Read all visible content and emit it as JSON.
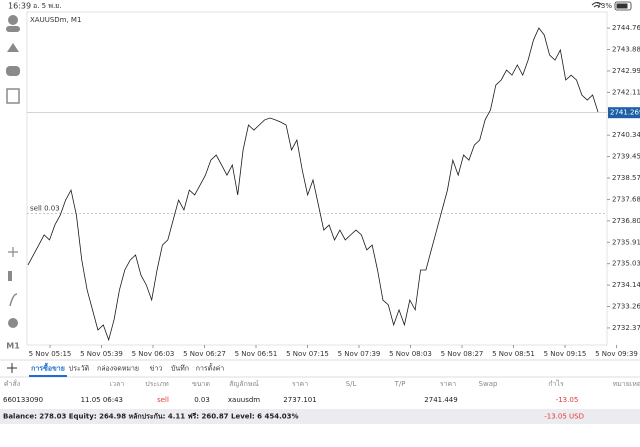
{
  "status_bar": {
    "time": "16:39",
    "date": "อ. 5 พ.ย.",
    "battery": "73%"
  },
  "toolbar": {
    "timeframe": "M1"
  },
  "chart": {
    "type": "line",
    "title": "XAUUSDm, M1",
    "color": "#1a1a1a",
    "values": [
      2734.98,
      2735.39,
      2735.8,
      2736.22,
      2736.01,
      2736.63,
      2737.04,
      2737.66,
      2738.07,
      2737.04,
      2735.18,
      2733.94,
      2733.12,
      2732.29,
      2732.5,
      2731.88,
      2732.71,
      2733.94,
      2734.77,
      2735.18,
      2735.39,
      2734.56,
      2734.15,
      2733.53,
      2734.77,
      2735.8,
      2736.01,
      2736.84,
      2737.66,
      2737.25,
      2738.07,
      2737.87,
      2738.28,
      2738.69,
      2739.31,
      2739.52,
      2739.11,
      2738.69,
      2739.11,
      2737.87,
      2739.73,
      2740.76,
      2740.55,
      2740.76,
      2740.97,
      2741.05,
      2740.97,
      2740.88,
      2740.76,
      2739.73,
      2740.14,
      2738.9,
      2737.87,
      2738.49,
      2737.46,
      2736.42,
      2736.63,
      2736.01,
      2736.42,
      2736.01,
      2736.22,
      2736.42,
      2736.22,
      2735.6,
      2735.8,
      2734.77,
      2733.53,
      2733.33,
      2732.5,
      2733.12,
      2732.5,
      2733.53,
      2733.12,
      2734.77,
      2734.77,
      2735.6,
      2736.42,
      2737.25,
      2738.07,
      2739.31,
      2738.69,
      2739.52,
      2739.31,
      2739.93,
      2740.14,
      2740.97,
      2741.38,
      2742.41,
      2742.62,
      2743.03,
      2742.82,
      2743.24,
      2742.82,
      2743.44,
      2744.27,
      2744.77,
      2744.48,
      2743.65,
      2743.44,
      2743.86,
      2742.62,
      2742.82,
      2742.62,
      2742.0,
      2741.79,
      2742.0,
      2741.3
    ],
    "ylim": [
      2731.67,
      2745.43
    ],
    "yticks": [
      2744.765,
      {
        "value": 2743.88,
        "label": "2743.880"
      },
      2742.995,
      {
        "value": 2742.11,
        "label": "2742.110"
      },
      {
        "value": 2740.34,
        "label": "2740.340"
      },
      2739.455,
      {
        "value": 2738.57,
        "label": "2738.570"
      },
      2737.685,
      {
        "value": 2736.8,
        "label": "2736.800"
      },
      2735.915,
      {
        "value": 2735.03,
        "label": "2735.030"
      },
      2734.145,
      {
        "value": 2733.26,
        "label": "2733.260"
      },
      2732.375
    ],
    "xticks": [
      "5 Nov 05:15",
      "5 Nov 05:39",
      "5 Nov 06:03",
      "5 Nov 06:27",
      "5 Nov 06:51",
      "5 Nov 07:15",
      "5 Nov 07:39",
      "5 Nov 08:03",
      "5 Nov 08:27",
      "5 Nov 08:51",
      "5 Nov 09:15",
      "5 Nov 09:39"
    ],
    "current_price": 2741.269,
    "order_line_label": "sell 0.03"
  },
  "tabs": [
    "การซื้อขาย",
    "ประวัติ",
    "กล่องจดหมาย",
    "ข่าว",
    "บันทึก",
    "การตั้งค่า"
  ],
  "table": {
    "headers": [
      "คำสั่ง",
      "เวลา",
      "ประเภท",
      "ขนาด",
      "สัญลักษณ์",
      "ราคา",
      "S/L",
      "T/P",
      "ราคา",
      "Swap",
      "กำไร",
      "หมายเหตุ"
    ],
    "rows": [
      {
        "order": "660133090",
        "time": "11.05 06:43",
        "type": "sell",
        "volume": 0.03,
        "symbol": "xauusdm",
        "open_price": 2737.101,
        "price": 2741.449,
        "profit": -13.05
      }
    ]
  },
  "summary": {
    "text": "Balance: 278.03 Equity: 264.98 หลักประกัน: 4.11 ฟรี: 260.87 Level: 6 454.03%",
    "profit": "-13.05 USD"
  }
}
